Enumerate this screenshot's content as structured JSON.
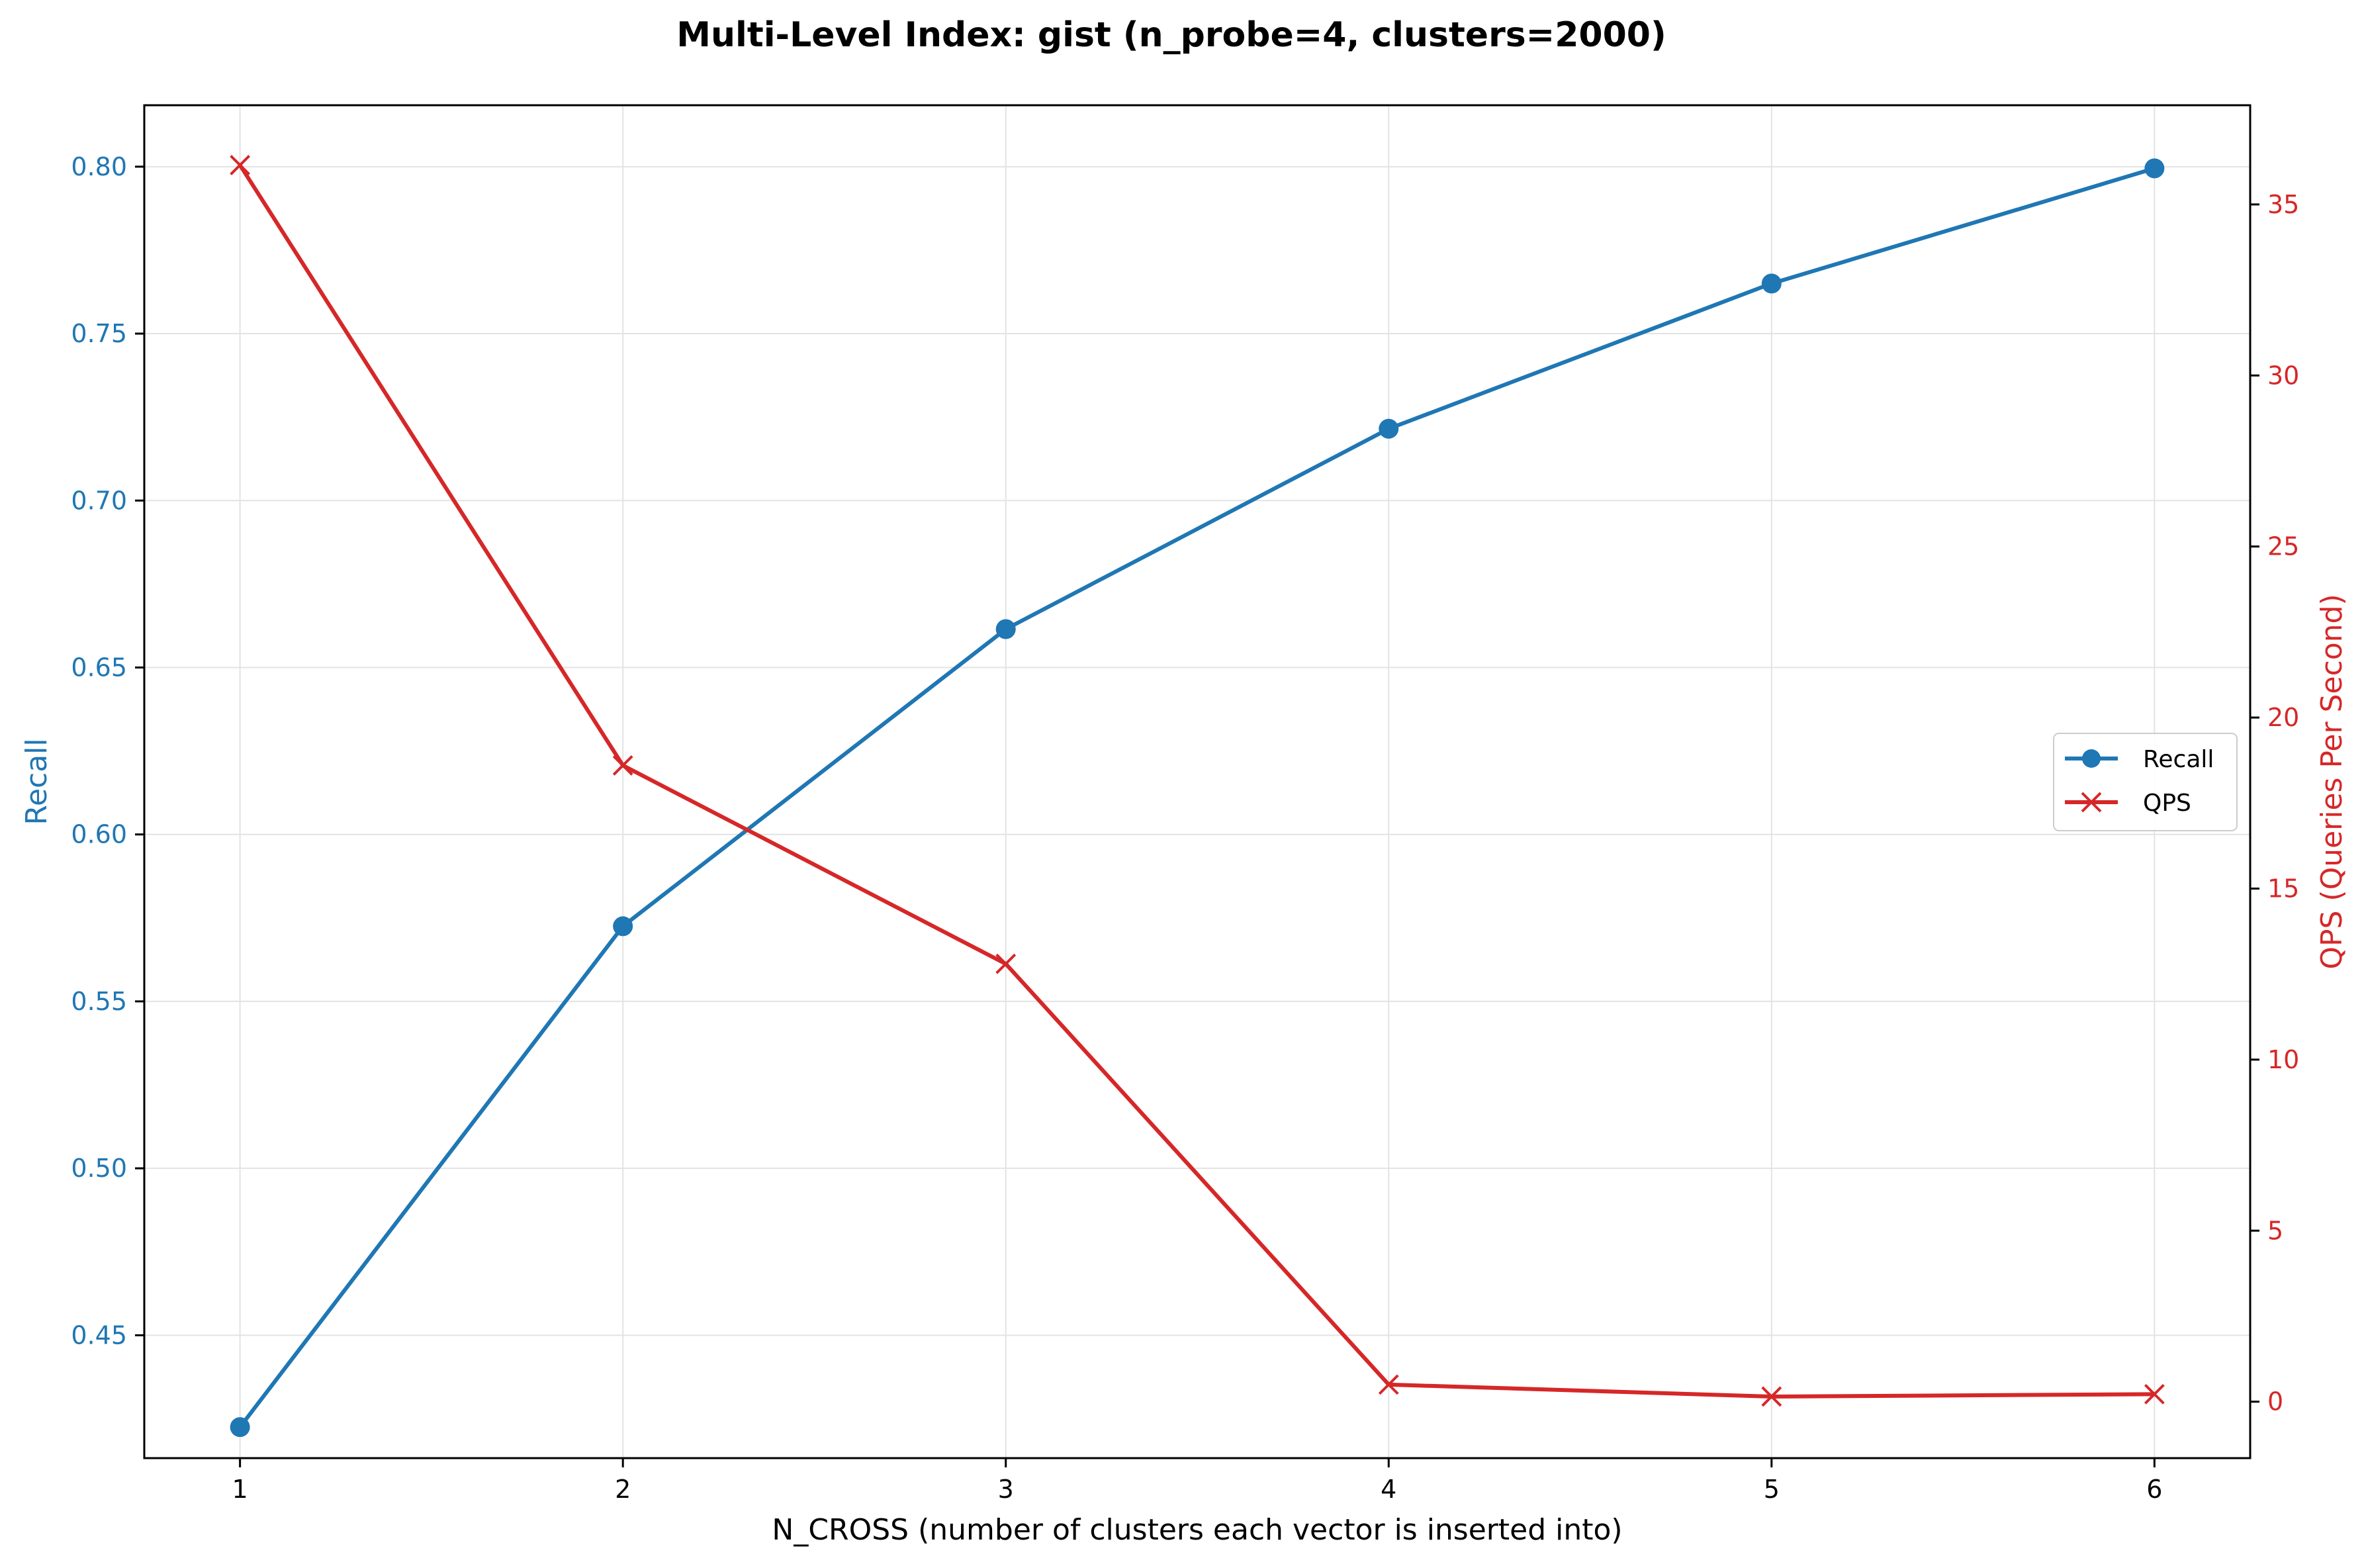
{
  "chart_data": {
    "type": "line",
    "title": "Multi-Level Index: gist (n_probe=4, clusters=2000)",
    "xlabel": "N_CROSS (number of clusters each vector is inserted into)",
    "x": [
      1,
      2,
      3,
      4,
      5,
      6
    ],
    "xlim": [
      0.75,
      6.25
    ],
    "xticks": [
      1,
      2,
      3,
      4,
      5,
      6
    ],
    "grid": true,
    "legend": {
      "placement": "center-right",
      "entries": [
        "Recall",
        "QPS"
      ]
    },
    "axes": {
      "left": {
        "label": "Recall",
        "color": "#1f77b4",
        "ylim": [
          0.4132,
          0.8184
        ],
        "ticks": [
          "0.45",
          "0.50",
          "0.55",
          "0.60",
          "0.65",
          "0.70",
          "0.75",
          "0.80"
        ]
      },
      "right": {
        "label": "QPS (Queries Per Second)",
        "color": "#d62728",
        "ylim": [
          -1.65,
          37.9
        ],
        "ticks": [
          "0",
          "5",
          "10",
          "15",
          "20",
          "25",
          "30",
          "35"
        ]
      }
    },
    "series": [
      {
        "name": "Recall",
        "axis": "left",
        "color": "#1f77b4",
        "marker": "circle",
        "values": [
          0.4225,
          0.5725,
          0.6615,
          0.7215,
          0.765,
          0.7995
        ]
      },
      {
        "name": "QPS",
        "axis": "right",
        "color": "#d62728",
        "marker": "x",
        "values": [
          36.15,
          18.6,
          12.8,
          0.5,
          0.15,
          0.22
        ]
      }
    ]
  }
}
